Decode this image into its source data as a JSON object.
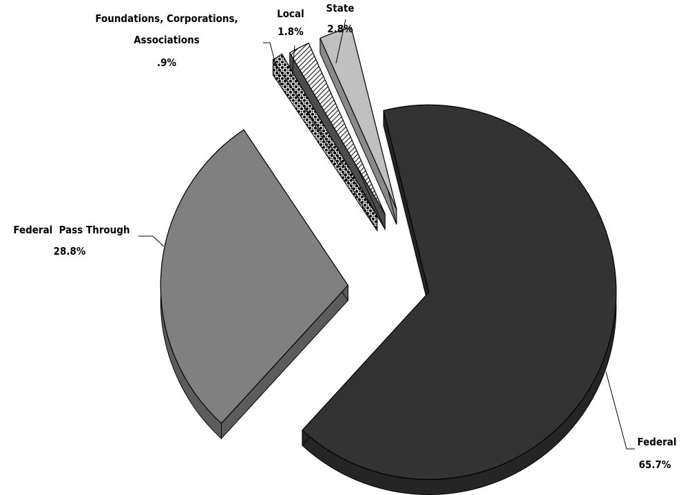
{
  "chart_data": {
    "type": "pie",
    "style": "exploded-3d",
    "slices": [
      {
        "name": "Federal",
        "value": 65.7,
        "value_label": "65.7%",
        "color": "#333333"
      },
      {
        "name": "Federal  Pass Through",
        "value": 28.8,
        "value_label": "28.8%",
        "color": "#808080"
      },
      {
        "name": "Foundations, Corporations, Associations",
        "value": 0.9,
        "value_label": ".9%",
        "color": "#1a1a1a",
        "pattern": "checker"
      },
      {
        "name": "Local",
        "value": 1.8,
        "value_label": "1.8%",
        "color": "#ffffff",
        "pattern": "diagonal-hatch"
      },
      {
        "name": "State",
        "value": 2.8,
        "value_label": "2.8%",
        "color": "#c0c0c0"
      }
    ],
    "legend": "none",
    "title": ""
  },
  "labels": {
    "federal": {
      "name": "Federal",
      "value": "65.7%"
    },
    "pass_through": {
      "name": "Federal  Pass Through",
      "value": "28.8%"
    },
    "foundations": {
      "line1": "Foundations, Corporations,",
      "line2": "Associations",
      "value": ".9%"
    },
    "local": {
      "name": "Local",
      "value": "1.8%"
    },
    "state": {
      "name": "State",
      "value": "2.8%"
    }
  }
}
